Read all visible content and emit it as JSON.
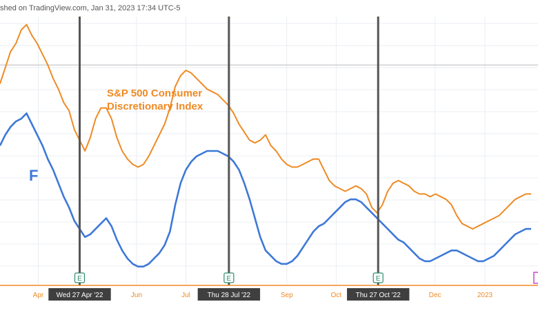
{
  "header": {
    "published": "shed on TradingView.com, Jan 31, 2023 17:34 UTC-5"
  },
  "colors": {
    "sp500": "#ef8a24",
    "ford": "#3d78d8",
    "earnings_line": "#555555",
    "earnings_badge": "#2a8c6d",
    "axis": "#ef8a24",
    "grid": "#e9eef3",
    "reference_line": "#b8b8b8",
    "date_box": "#3f3f3f",
    "corner_marker": "#cc44cc"
  },
  "chart_data": {
    "type": "line",
    "title": "",
    "ylabel": "",
    "xlabel": "",
    "grid": true,
    "x_range": [
      0,
      100
    ],
    "ylim": [
      0,
      100
    ],
    "x_ticks": [
      {
        "label": "Apr",
        "x": 7.2
      },
      {
        "label": "Jun",
        "x": 25.7
      },
      {
        "label": "Jul",
        "x": 35.0
      },
      {
        "label": "Sep",
        "x": 54.0
      },
      {
        "label": "Oct",
        "x": 63.3
      },
      {
        "label": "Dec",
        "x": 81.9
      },
      {
        "label": "2023",
        "x": 91.3
      }
    ],
    "series": [
      {
        "name": "S&P 500 Consumer Discretionary Index",
        "label_lines": [
          "S&P 500 Consumer",
          "Discretionary Index"
        ],
        "color": "#ef8a24",
        "x": [
          0,
          1,
          2,
          3,
          4,
          5,
          6,
          7,
          8,
          9,
          10,
          11,
          12,
          13,
          14,
          15,
          16,
          17,
          18,
          19,
          20,
          21,
          22,
          23,
          24,
          25,
          26,
          27,
          28,
          29,
          30,
          31,
          32,
          33,
          34,
          35,
          36,
          37,
          38,
          39,
          40,
          41,
          42,
          43,
          44,
          45,
          46,
          47,
          48,
          49,
          50,
          51,
          52,
          53,
          54,
          55,
          56,
          57,
          58,
          59,
          60,
          61,
          62,
          63,
          64,
          65,
          66,
          67,
          68,
          69,
          70,
          71,
          72,
          73,
          74,
          75,
          76,
          77,
          78,
          79,
          80,
          81,
          82,
          83,
          84,
          85,
          86,
          87,
          88,
          89,
          90,
          91,
          92,
          93,
          94,
          95,
          96,
          97,
          98,
          99,
          100
        ],
        "values": [
          75,
          81,
          87,
          90,
          95,
          97,
          93,
          90,
          86,
          82,
          77,
          73,
          68,
          65,
          58,
          54,
          50,
          55,
          62,
          66,
          66,
          62,
          55,
          50,
          47,
          45,
          44,
          45,
          48,
          52,
          56,
          60,
          66,
          74,
          78,
          80,
          79,
          77,
          75,
          73,
          72,
          71,
          69,
          67,
          64,
          60,
          57,
          54,
          53,
          54,
          56,
          52,
          50,
          47,
          45,
          44,
          44,
          45,
          46,
          47,
          47,
          43,
          39,
          37,
          36,
          35,
          36,
          37,
          36,
          34,
          29,
          27,
          30,
          35,
          38,
          39,
          38,
          37,
          35,
          34,
          34,
          33,
          34,
          33,
          32,
          30,
          26,
          23,
          22,
          21,
          22,
          23,
          24,
          25,
          26,
          28,
          30,
          32,
          33,
          34,
          34
        ]
      },
      {
        "name": "F",
        "label_lines": [
          "F"
        ],
        "color": "#3d78d8",
        "x": [
          0,
          1,
          2,
          3,
          4,
          5,
          6,
          7,
          8,
          9,
          10,
          11,
          12,
          13,
          14,
          15,
          16,
          17,
          18,
          19,
          20,
          21,
          22,
          23,
          24,
          25,
          26,
          27,
          28,
          29,
          30,
          31,
          32,
          33,
          34,
          35,
          36,
          37,
          38,
          39,
          40,
          41,
          42,
          43,
          44,
          45,
          46,
          47,
          48,
          49,
          50,
          51,
          52,
          53,
          54,
          55,
          56,
          57,
          58,
          59,
          60,
          61,
          62,
          63,
          64,
          65,
          66,
          67,
          68,
          69,
          70,
          71,
          72,
          73,
          74,
          75,
          76,
          77,
          78,
          79,
          80,
          81,
          82,
          83,
          84,
          85,
          86,
          87,
          88,
          89,
          90,
          91,
          92,
          93,
          94,
          95,
          96,
          97,
          98,
          99,
          100
        ],
        "values": [
          52,
          56,
          59,
          61,
          62,
          64,
          60,
          56,
          52,
          47,
          43,
          38,
          33,
          29,
          24,
          21,
          18,
          19,
          21,
          23,
          25,
          22,
          17,
          13,
          10,
          8,
          7,
          7,
          8,
          10,
          12,
          15,
          20,
          30,
          38,
          43,
          46,
          48,
          49,
          50,
          50,
          50,
          49,
          48,
          46,
          43,
          38,
          32,
          25,
          18,
          13,
          11,
          9,
          8,
          8,
          9,
          11,
          14,
          17,
          20,
          22,
          23,
          25,
          27,
          29,
          31,
          32,
          32,
          31,
          29,
          27,
          25,
          23,
          21,
          19,
          17,
          16,
          14,
          12,
          10,
          9,
          9,
          10,
          11,
          12,
          13,
          13,
          12,
          11,
          10,
          9,
          9,
          10,
          11,
          13,
          15,
          17,
          19,
          20,
          21,
          21
        ]
      }
    ],
    "vertical_markers": [
      {
        "x": 15.0,
        "date_label": "Wed 27 Apr '22",
        "badge": "E"
      },
      {
        "x": 43.1,
        "date_label": "Thu 28 Jul '22",
        "badge": "E"
      },
      {
        "x": 71.2,
        "date_label": "Thu 27 Oct '22",
        "badge": "E"
      }
    ],
    "reference_line": {
      "y": 82
    }
  }
}
